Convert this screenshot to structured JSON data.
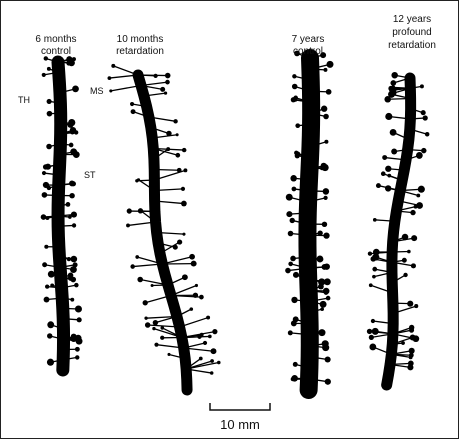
{
  "panels": [
    {
      "label": [
        "6 months",
        "control"
      ]
    },
    {
      "label": [
        "10 months",
        "retardation"
      ]
    },
    {
      "label": [
        "7 years",
        "control"
      ]
    },
    {
      "label": [
        "12 years",
        "profound",
        "retardation"
      ]
    }
  ],
  "annotations": [
    "TH",
    "MS",
    "ST"
  ],
  "scale_bar": {
    "label": "10 mm"
  }
}
